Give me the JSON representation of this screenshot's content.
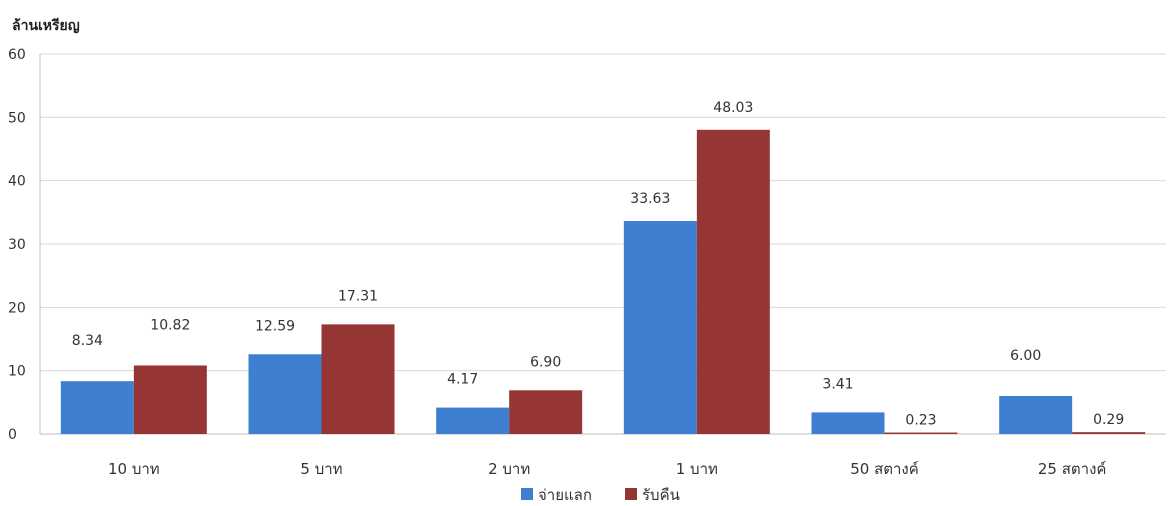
{
  "chart_data": {
    "type": "bar",
    "ylabel": "ล้านเหรียญ",
    "ylim": [
      0,
      60
    ],
    "yticks": [
      0,
      10,
      20,
      30,
      40,
      50,
      60
    ],
    "grid": true,
    "legend_position": "bottom-center",
    "categories": [
      "10 บาท",
      "5 บาท",
      "2 บาท",
      "1 บาท",
      "50 สตางค์",
      "25 สตางค์"
    ],
    "series": [
      {
        "name": "จ่ายแลก",
        "color": "#3E7FD1",
        "values": [
          8.34,
          12.59,
          4.17,
          33.63,
          3.41,
          6.0
        ],
        "labels": [
          "8.34",
          "12.59",
          "4.17",
          "33.63",
          "3.41",
          "6.00"
        ]
      },
      {
        "name": "รับคืน",
        "color": "#963634",
        "values": [
          10.82,
          17.31,
          6.9,
          48.03,
          0.23,
          0.29
        ],
        "labels": [
          "10.82",
          "17.31",
          "6.90",
          "48.03",
          "0.23",
          "0.29"
        ]
      }
    ]
  }
}
